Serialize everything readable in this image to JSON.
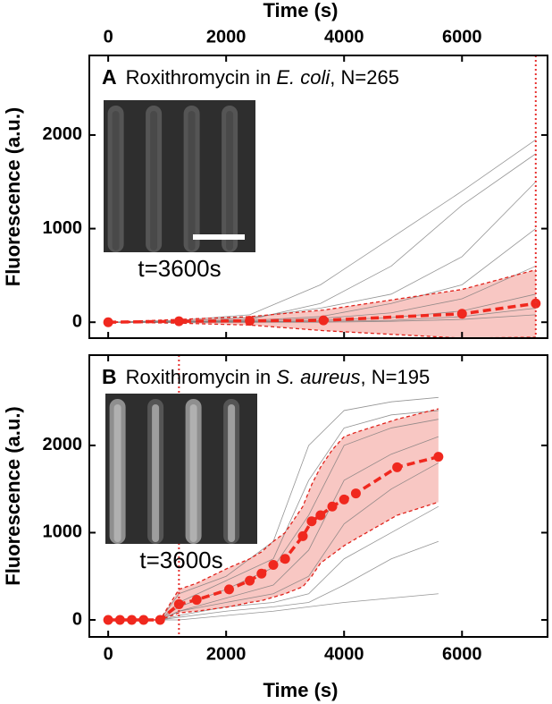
{
  "chart_data": [
    {
      "type": "line",
      "panel_label": "A",
      "title_prefix": "Roxithromycin in ",
      "title_organism": "E. coli",
      "title_suffix": ", N=265",
      "x_label": "Time (s)",
      "x_axis_position": "top",
      "y_label": "Fluorescence (a.u.)",
      "xlim": [
        -320,
        7450
      ],
      "ylim": [
        -170,
        2850
      ],
      "xticks": [
        0,
        2000,
        4000,
        6000
      ],
      "yticks": [
        0,
        1000,
        2000
      ],
      "vline": 7250,
      "vline_color": "#e8312f",
      "inset_label": "t=3600s",
      "scale_bar": true,
      "mean": {
        "color": "#f0281e",
        "x": [
          0,
          1200,
          2400,
          3650,
          6000,
          7250
        ],
        "values": [
          0,
          10,
          15,
          20,
          90,
          200
        ]
      },
      "band": {
        "color": "#f4a9a3",
        "edge_color": "#e0231c",
        "upper": [
          0,
          30,
          60,
          130,
          350,
          560
        ],
        "lower": [
          0,
          -10,
          -30,
          -90,
          -170,
          -160
        ]
      },
      "traces": {
        "color": "#7a7a7a",
        "x": [
          0,
          1200,
          2400,
          3600,
          4800,
          6000,
          7250
        ],
        "series": [
          [
            0,
            20,
            80,
            400,
            900,
            1400,
            1950
          ],
          [
            0,
            0,
            30,
            200,
            600,
            1250,
            1800
          ],
          [
            0,
            10,
            50,
            150,
            300,
            700,
            1500
          ],
          [
            0,
            0,
            20,
            60,
            200,
            400,
            1000
          ],
          [
            0,
            5,
            10,
            40,
            100,
            250,
            600
          ],
          [
            0,
            0,
            0,
            20,
            50,
            120,
            300
          ],
          [
            0,
            0,
            5,
            10,
            20,
            60,
            150
          ],
          [
            0,
            0,
            0,
            0,
            10,
            30,
            80
          ]
        ]
      }
    },
    {
      "type": "line",
      "panel_label": "B",
      "title_prefix": "Roxithromycin in ",
      "title_organism": "S. aureus",
      "title_suffix": ", N=195",
      "x_label": "Time (s)",
      "x_axis_position": "bottom",
      "y_label": "Fluorescence (a.u.)",
      "xlim": [
        -320,
        7450
      ],
      "ylim": [
        -195,
        3035
      ],
      "xticks": [
        0,
        2000,
        4000,
        6000
      ],
      "yticks": [
        0,
        1000,
        2000
      ],
      "vline": 1200,
      "vline_color": "#e8312f",
      "inset_label": "t=3600s",
      "scale_bar": false,
      "mean": {
        "color": "#f0281e",
        "x": [
          0,
          200,
          400,
          600,
          880,
          1200,
          1500,
          2050,
          2400,
          2600,
          2800,
          3000,
          3300,
          3450,
          3600,
          3800,
          4000,
          4200,
          4900,
          5600
        ],
        "values": [
          0,
          0,
          0,
          0,
          0,
          180,
          230,
          350,
          450,
          530,
          630,
          700,
          960,
          1130,
          1200,
          1300,
          1380,
          1450,
          1750,
          1870
        ]
      },
      "band": {
        "color": "#f4a9a3",
        "edge_color": "#e0231c",
        "upper": [
          0,
          0,
          0,
          0,
          0,
          350,
          420,
          600,
          700,
          780,
          900,
          1000,
          1300,
          1550,
          1750,
          1950,
          2100,
          2150,
          2300,
          2420
        ],
        "lower": [
          0,
          0,
          0,
          0,
          0,
          80,
          100,
          150,
          200,
          220,
          260,
          300,
          380,
          500,
          650,
          750,
          850,
          930,
          1200,
          1350
        ]
      },
      "traces": {
        "color": "#7a7a7a",
        "x": [
          0,
          880,
          1200,
          2000,
          2800,
          3400,
          4000,
          4800,
          5600
        ],
        "series": [
          [
            0,
            0,
            300,
            500,
            900,
            2000,
            2400,
            2500,
            2550
          ],
          [
            0,
            0,
            200,
            450,
            700,
            1600,
            2200,
            2350,
            2400
          ],
          [
            0,
            0,
            150,
            350,
            600,
            1200,
            2000,
            2200,
            2300
          ],
          [
            0,
            0,
            100,
            250,
            400,
            800,
            1600,
            1900,
            2100
          ],
          [
            0,
            0,
            100,
            200,
            300,
            500,
            1100,
            1500,
            1800
          ],
          [
            0,
            0,
            50,
            150,
            200,
            300,
            700,
            1000,
            1300
          ],
          [
            0,
            0,
            30,
            100,
            150,
            200,
            400,
            700,
            900
          ],
          [
            0,
            0,
            0,
            50,
            100,
            150,
            200,
            250,
            300
          ]
        ]
      }
    }
  ]
}
